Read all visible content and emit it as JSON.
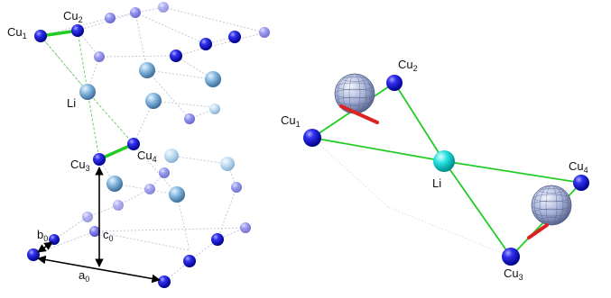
{
  "left_panel": {
    "labels": {
      "cu1": {
        "base": "Cu",
        "sub": "1"
      },
      "cu2": {
        "base": "Cu",
        "sub": "2"
      },
      "cu3": {
        "base": "Cu",
        "sub": "3"
      },
      "cu4": {
        "base": "Cu",
        "sub": "4"
      },
      "li": {
        "base": "Li"
      },
      "a0": {
        "base": "a",
        "sub": "0"
      },
      "b0": {
        "base": "b",
        "sub": "0"
      },
      "c0": {
        "base": "c",
        "sub": "0"
      }
    }
  },
  "right_panel": {
    "labels": {
      "cu1": {
        "base": "Cu",
        "sub": "1"
      },
      "cu2": {
        "base": "Cu",
        "sub": "2"
      },
      "cu3": {
        "base": "Cu",
        "sub": "3"
      },
      "cu4": {
        "base": "Cu",
        "sub": "4"
      },
      "li": {
        "base": "Li"
      }
    }
  },
  "colors": {
    "cu_atom": "#1111dd",
    "li_atom": "#7ab0d8",
    "li_center": "#22d8d8",
    "bond": "#22cc22",
    "axis_red": "#dd2222",
    "lattice_line": "#c8c8d8",
    "arrow": "#000000"
  }
}
